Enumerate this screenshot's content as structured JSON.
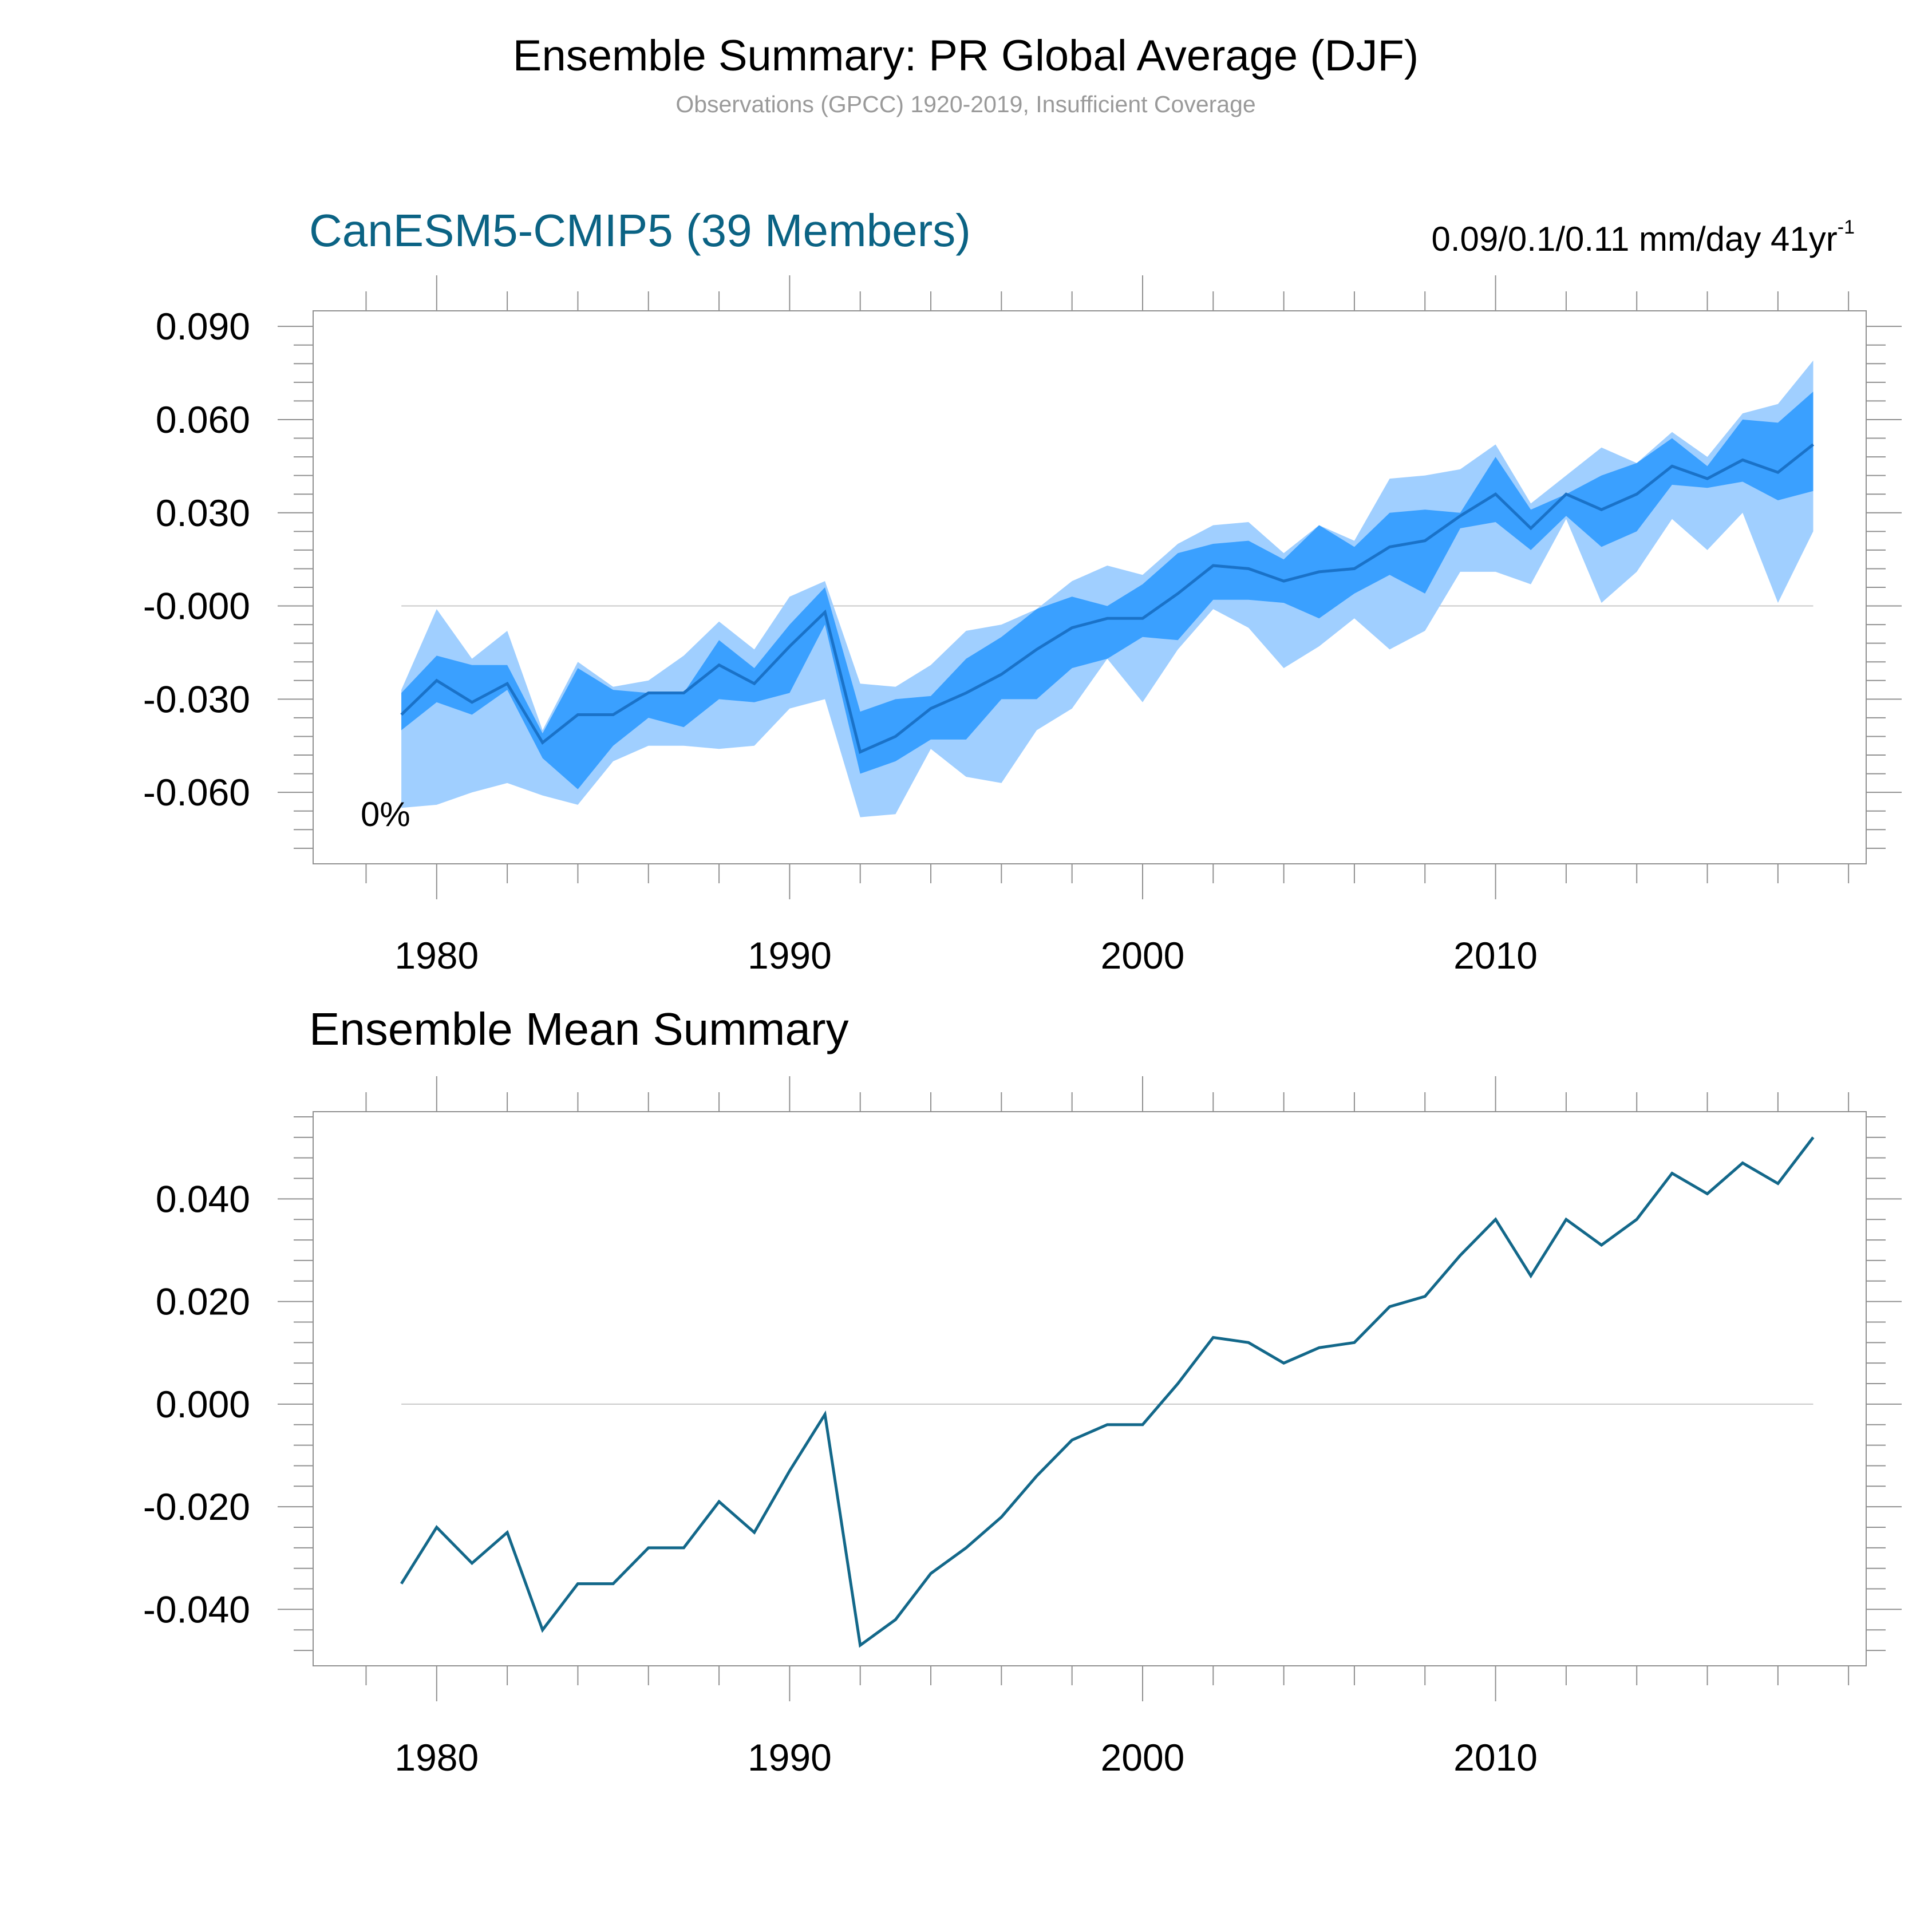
{
  "figure": {
    "title": "Ensemble Summary: PR Global Average (DJF)",
    "subtitle": "Observations (GPCC) 1920-2019, Insufficient Coverage"
  },
  "colors": {
    "title_blue": "#0b6384",
    "outer_band": "#a0cfff",
    "inner_band": "#3aa0ff",
    "mean_top": "#1a72c8",
    "mean_bottom": "#13688a",
    "frame": "#909090",
    "zero_line": "#c8c8c8"
  },
  "chart_data": [
    {
      "type": "area",
      "panel": "top",
      "title": "CanESM5-CMIP5 (39 Members)",
      "annotation_right": "0.09/0.1/0.11 mm/day 41yr",
      "annotation_right_sup": "-1",
      "percent_label": "0%",
      "xlim": [
        1976.5,
        2020.5
      ],
      "ylim": [
        -0.083,
        0.095
      ],
      "x_ticks": [
        1980,
        1990,
        2000,
        2010
      ],
      "x_tick_labels": [
        "1980",
        "1990",
        "2000",
        "2010"
      ],
      "y_ticks": [
        -0.06,
        -0.03,
        0.0,
        0.03,
        0.06,
        0.09
      ],
      "y_tick_labels": [
        "-0.060",
        "-0.030",
        "-0.000",
        "0.030",
        "0.060",
        "0.090"
      ],
      "x": [
        1979,
        1980,
        1981,
        1982,
        1983,
        1984,
        1985,
        1986,
        1987,
        1988,
        1989,
        1990,
        1991,
        1992,
        1993,
        1994,
        1995,
        1996,
        1997,
        1998,
        1999,
        2000,
        2001,
        2002,
        2003,
        2004,
        2005,
        2006,
        2007,
        2008,
        2009,
        2010,
        2011,
        2012,
        2013,
        2014,
        2015,
        2016,
        2017,
        2018,
        2019
      ],
      "series": [
        {
          "name": "Max",
          "values": [
            -0.027,
            -0.001,
            -0.017,
            -0.008,
            -0.04,
            -0.018,
            -0.026,
            -0.024,
            -0.016,
            -0.005,
            -0.014,
            0.003,
            0.008,
            -0.025,
            -0.026,
            -0.019,
            -0.008,
            -0.006,
            -0.001,
            0.008,
            0.013,
            0.01,
            0.02,
            0.026,
            0.027,
            0.017,
            0.026,
            0.021,
            0.041,
            0.042,
            0.044,
            0.052,
            0.033,
            0.042,
            0.051,
            0.046,
            0.056,
            0.048,
            0.062,
            0.065,
            0.079
          ]
        },
        {
          "name": "Upper",
          "values": [
            -0.028,
            -0.016,
            -0.019,
            -0.019,
            -0.041,
            -0.02,
            -0.027,
            -0.028,
            -0.028,
            -0.011,
            -0.02,
            -0.006,
            0.006,
            -0.034,
            -0.03,
            -0.029,
            -0.017,
            -0.01,
            -0.001,
            0.003,
            0.0,
            0.007,
            0.017,
            0.02,
            0.021,
            0.015,
            0.026,
            0.019,
            0.03,
            0.031,
            0.03,
            0.048,
            0.031,
            0.036,
            0.042,
            0.046,
            0.054,
            0.045,
            0.06,
            0.059,
            0.069
          ]
        },
        {
          "name": "Mean",
          "values": [
            -0.035,
            -0.024,
            -0.031,
            -0.025,
            -0.044,
            -0.035,
            -0.035,
            -0.028,
            -0.028,
            -0.019,
            -0.025,
            -0.013,
            -0.002,
            -0.047,
            -0.042,
            -0.033,
            -0.028,
            -0.022,
            -0.014,
            -0.007,
            -0.004,
            -0.004,
            0.004,
            0.013,
            0.012,
            0.008,
            0.011,
            0.012,
            0.019,
            0.021,
            0.029,
            0.036,
            0.025,
            0.036,
            0.031,
            0.036,
            0.045,
            0.041,
            0.047,
            0.043,
            0.052
          ]
        },
        {
          "name": "Lower",
          "values": [
            -0.04,
            -0.031,
            -0.035,
            -0.027,
            -0.049,
            -0.059,
            -0.045,
            -0.036,
            -0.039,
            -0.03,
            -0.031,
            -0.028,
            -0.006,
            -0.054,
            -0.05,
            -0.043,
            -0.043,
            -0.03,
            -0.03,
            -0.02,
            -0.017,
            -0.01,
            -0.011,
            0.002,
            0.002,
            0.001,
            -0.004,
            0.004,
            0.01,
            0.004,
            0.025,
            0.027,
            0.018,
            0.029,
            0.019,
            0.024,
            0.039,
            0.038,
            0.04,
            0.034,
            0.037
          ]
        },
        {
          "name": "Min",
          "values": [
            -0.065,
            -0.064,
            -0.06,
            -0.057,
            -0.061,
            -0.064,
            -0.05,
            -0.045,
            -0.045,
            -0.046,
            -0.045,
            -0.033,
            -0.03,
            -0.068,
            -0.067,
            -0.046,
            -0.055,
            -0.057,
            -0.04,
            -0.033,
            -0.017,
            -0.031,
            -0.014,
            -0.001,
            -0.007,
            -0.02,
            -0.013,
            -0.004,
            -0.014,
            -0.008,
            0.011,
            0.011,
            0.007,
            0.028,
            0.001,
            0.011,
            0.028,
            0.018,
            0.03,
            0.001,
            0.024
          ]
        }
      ]
    },
    {
      "type": "line",
      "panel": "bottom",
      "title": "Ensemble Mean Summary",
      "xlim": [
        1976.5,
        2020.5
      ],
      "ylim": [
        -0.051,
        0.057
      ],
      "x_ticks": [
        1980,
        1990,
        2000,
        2010
      ],
      "x_tick_labels": [
        "1980",
        "1990",
        "2000",
        "2010"
      ],
      "y_ticks": [
        -0.04,
        -0.02,
        0.0,
        0.02,
        0.04
      ],
      "y_tick_labels": [
        "-0.040",
        "-0.020",
        "0.000",
        "0.020",
        "0.040"
      ],
      "x": [
        1979,
        1980,
        1981,
        1982,
        1983,
        1984,
        1985,
        1986,
        1987,
        1988,
        1989,
        1990,
        1991,
        1992,
        1993,
        1994,
        1995,
        1996,
        1997,
        1998,
        1999,
        2000,
        2001,
        2002,
        2003,
        2004,
        2005,
        2006,
        2007,
        2008,
        2009,
        2010,
        2011,
        2012,
        2013,
        2014,
        2015,
        2016,
        2017,
        2018,
        2019
      ],
      "series": [
        {
          "name": "Ensemble Mean",
          "values": [
            -0.035,
            -0.024,
            -0.031,
            -0.025,
            -0.044,
            -0.035,
            -0.035,
            -0.028,
            -0.028,
            -0.019,
            -0.025,
            -0.013,
            -0.002,
            -0.047,
            -0.042,
            -0.033,
            -0.028,
            -0.022,
            -0.014,
            -0.007,
            -0.004,
            -0.004,
            0.004,
            0.013,
            0.012,
            0.008,
            0.011,
            0.012,
            0.019,
            0.021,
            0.029,
            0.036,
            0.025,
            0.036,
            0.031,
            0.036,
            0.045,
            0.041,
            0.047,
            0.043,
            0.052
          ]
        }
      ]
    }
  ]
}
